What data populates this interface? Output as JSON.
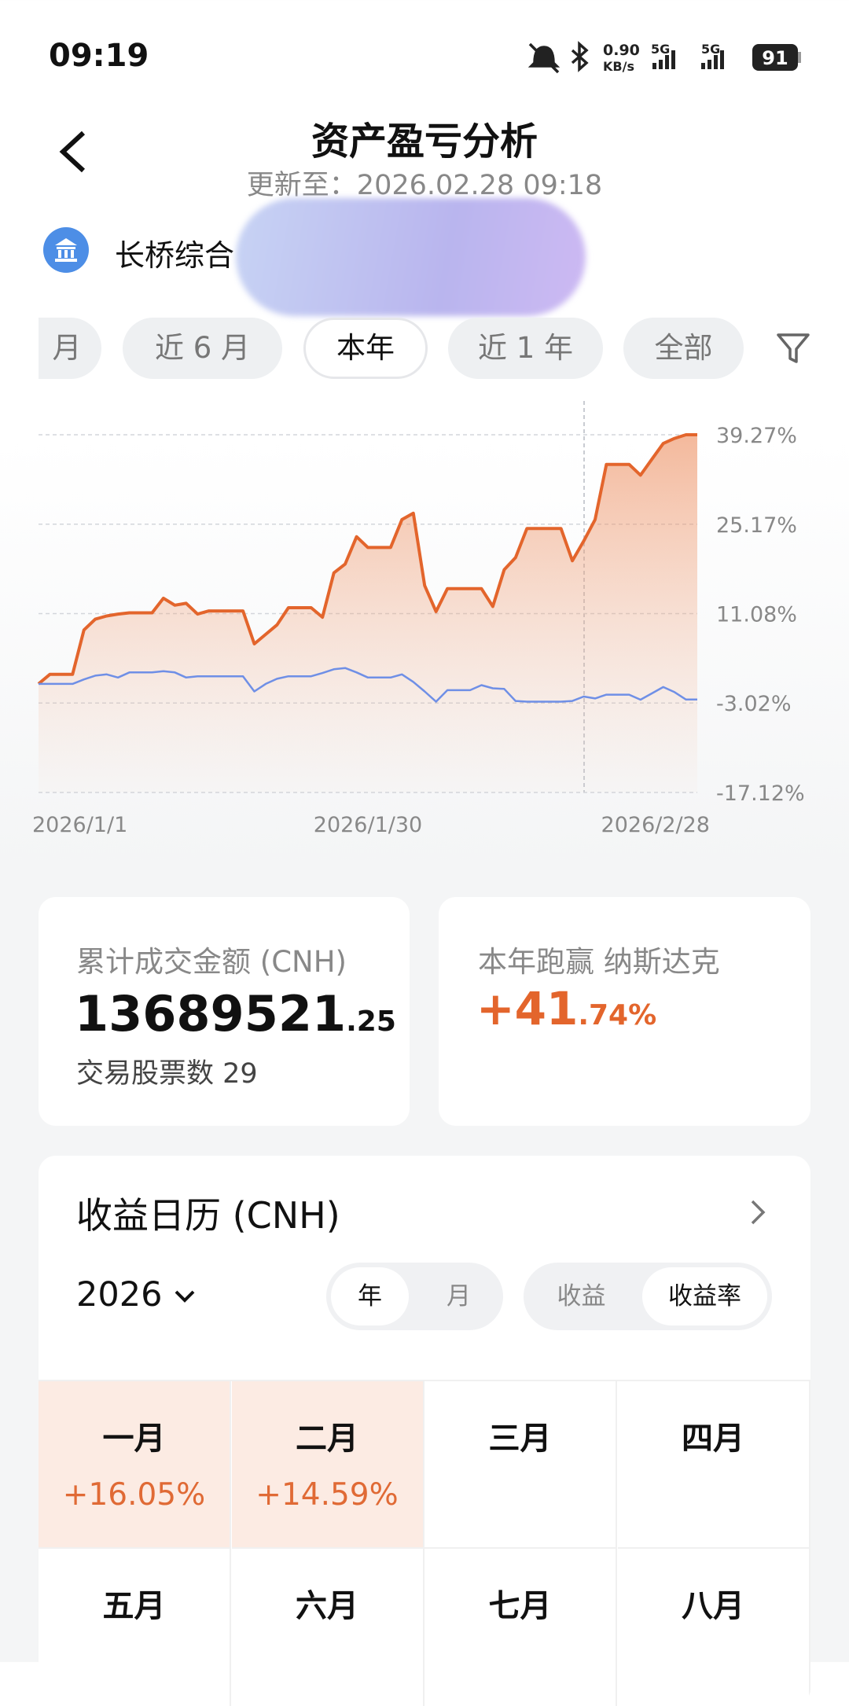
{
  "status_bar": {
    "time": "09:19",
    "speed": "0.90",
    "speed_unit": "KB/s",
    "net1": "5G",
    "net2": "5G",
    "battery": "91"
  },
  "header": {
    "title": "资产盈亏分析",
    "subtitle": "更新至：2026.02.28 09:18"
  },
  "account": {
    "name": "长桥综合"
  },
  "tabs": [
    "月",
    "近 6 月",
    "本年",
    "近 1 年",
    "全部"
  ],
  "chart_data": {
    "type": "line",
    "categories": [
      "2026/1/1",
      null,
      null,
      null,
      null,
      null,
      null,
      null,
      null,
      null,
      null,
      null,
      null,
      null,
      null,
      null,
      null,
      null,
      null,
      null,
      null,
      null,
      null,
      null,
      null,
      null,
      null,
      null,
      null,
      "2026/1/30",
      null,
      null,
      null,
      null,
      null,
      null,
      null,
      null,
      null,
      null,
      null,
      null,
      null,
      null,
      null,
      null,
      null,
      null,
      null,
      null,
      null,
      null,
      null,
      null,
      null,
      null,
      null,
      null,
      "2026/2/28"
    ],
    "series": [
      {
        "color": "#e3652c",
        "area": true,
        "values": [
          0,
          1.5,
          1.5,
          1.5,
          8.5,
          10.2,
          10.7,
          11.0,
          11.2,
          11.2,
          11.2,
          13.5,
          12.4,
          12.7,
          11.0,
          11.5,
          11.5,
          11.5,
          11.5,
          6.3,
          7.8,
          9.3,
          12.0,
          12.0,
          12.0,
          10.5,
          17.5,
          18.9,
          23.2,
          21.5,
          21.5,
          21.5,
          25.9,
          26.9,
          15.5,
          11.4,
          15.0,
          15.0,
          15.0,
          15.0,
          12.2,
          18.0,
          19.9,
          24.5,
          24.5,
          24.5,
          24.5,
          19.4,
          22.5,
          25.9,
          34.6,
          34.6,
          34.6,
          32.9,
          35.4,
          37.9,
          38.7,
          39.27,
          39.27
        ]
      },
      {
        "color": "#6f8fe6",
        "area": false,
        "values": [
          0,
          0,
          0,
          0,
          0.7,
          1.3,
          1.5,
          1.0,
          1.8,
          1.8,
          1.8,
          2.0,
          1.8,
          1.0,
          1.2,
          1.2,
          1.2,
          1.2,
          1.2,
          -1.2,
          0,
          0.8,
          1.2,
          1.2,
          1.2,
          1.7,
          2.3,
          2.5,
          1.8,
          1.0,
          1.0,
          1.0,
          1.5,
          0.3,
          -1.2,
          -2.8,
          -1.0,
          -1.0,
          -1.0,
          -0.2,
          -0.7,
          -0.8,
          -2.7,
          -2.8,
          -2.8,
          -2.8,
          -2.8,
          -2.7,
          -2.0,
          -2.3,
          -1.7,
          -1.7,
          -1.7,
          -2.5,
          -1.5,
          -0.5,
          -1.3,
          -2.47,
          -2.47
        ]
      }
    ],
    "ylim": [
      -17.12,
      39.27
    ],
    "yticks": [
      {
        "value": 39.27,
        "label": "39.27%"
      },
      {
        "value": 25.17,
        "label": "25.17%"
      },
      {
        "value": 11.08,
        "label": "11.08%"
      },
      {
        "value": -3.02,
        "label": "-3.02%"
      },
      {
        "value": -17.12,
        "label": "-17.12%"
      }
    ],
    "grid": true
  },
  "summary": {
    "amount_label": "累计成交金额 (CNH)",
    "amount_int": "13689521",
    "amount_dec": ".25",
    "stock_count_label": "交易股票数",
    "stock_count": "29",
    "outperform_label": "本年跑赢",
    "benchmark": "纳斯达克",
    "outperform_int": "+41",
    "outperform_dec": ".74%"
  },
  "calendar": {
    "title": "收益日历 (CNH)",
    "year": "2026",
    "period_toggle": [
      "年",
      "月"
    ],
    "metric_toggle": [
      "收益",
      "收益率"
    ],
    "months": [
      {
        "name": "一月",
        "value": "+16.05%"
      },
      {
        "name": "二月",
        "value": "+14.59%"
      },
      {
        "name": "三月"
      },
      {
        "name": "四月"
      },
      {
        "name": "五月"
      },
      {
        "name": "六月"
      },
      {
        "name": "七月"
      },
      {
        "name": "八月"
      }
    ]
  }
}
